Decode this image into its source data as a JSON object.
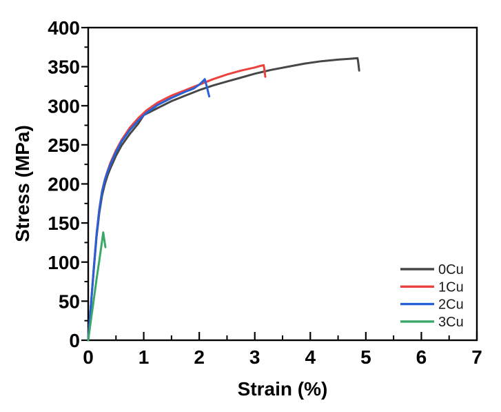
{
  "figure": {
    "background": "#ffffff",
    "plot_border_color": "#000000"
  },
  "axes": {
    "x": {
      "label": "Strain (%)",
      "min": 0,
      "max": 7,
      "major_step": 1,
      "minor_step": 0.5,
      "tick_labels": [
        "0",
        "1",
        "2",
        "3",
        "4",
        "5",
        "6",
        "7"
      ]
    },
    "y": {
      "label": "Stress (MPa)",
      "min": 0,
      "max": 400,
      "major_step": 50,
      "minor_step": 25,
      "tick_labels": [
        "0",
        "50",
        "100",
        "150",
        "200",
        "250",
        "300",
        "350",
        "400"
      ]
    }
  },
  "legend": {
    "position": "lower-right"
  },
  "chart_data": {
    "type": "line",
    "title": "",
    "xlabel": "Strain (%)",
    "ylabel": "Stress (MPa)",
    "xlim": [
      0,
      7
    ],
    "ylim": [
      0,
      400
    ],
    "grid": false,
    "legend_position": "lower right",
    "series": [
      {
        "name": "0Cu",
        "color": "#474747",
        "points": [
          [
            0,
            0
          ],
          [
            0.05,
            45
          ],
          [
            0.1,
            90
          ],
          [
            0.15,
            132
          ],
          [
            0.2,
            163
          ],
          [
            0.25,
            185
          ],
          [
            0.3,
            200
          ],
          [
            0.35,
            211
          ],
          [
            0.4,
            220
          ],
          [
            0.5,
            236
          ],
          [
            0.6,
            249
          ],
          [
            0.75,
            264
          ],
          [
            0.9,
            277
          ],
          [
            1.0,
            288
          ],
          [
            1.25,
            297
          ],
          [
            1.5,
            306
          ],
          [
            1.75,
            313
          ],
          [
            2.0,
            320
          ],
          [
            2.25,
            326
          ],
          [
            2.5,
            331
          ],
          [
            2.75,
            336
          ],
          [
            3.0,
            341
          ],
          [
            3.3,
            346
          ],
          [
            3.6,
            350
          ],
          [
            3.9,
            354
          ],
          [
            4.2,
            357
          ],
          [
            4.5,
            359
          ],
          [
            4.7,
            360
          ],
          [
            4.85,
            361
          ],
          [
            4.86,
            357
          ],
          [
            4.88,
            345
          ]
        ]
      },
      {
        "name": "1Cu",
        "color": "#ea423e",
        "points": [
          [
            0,
            0
          ],
          [
            0.05,
            46
          ],
          [
            0.1,
            93
          ],
          [
            0.15,
            136
          ],
          [
            0.2,
            168
          ],
          [
            0.25,
            191
          ],
          [
            0.3,
            206
          ],
          [
            0.35,
            217
          ],
          [
            0.4,
            227
          ],
          [
            0.5,
            243
          ],
          [
            0.6,
            256
          ],
          [
            0.75,
            272
          ],
          [
            0.9,
            284
          ],
          [
            1.05,
            294
          ],
          [
            1.25,
            304
          ],
          [
            1.5,
            313
          ],
          [
            1.75,
            320
          ],
          [
            2.0,
            327
          ],
          [
            2.25,
            334
          ],
          [
            2.5,
            340
          ],
          [
            2.75,
            345
          ],
          [
            3.0,
            349
          ],
          [
            3.1,
            351
          ],
          [
            3.16,
            352
          ],
          [
            3.17,
            348
          ],
          [
            3.19,
            337
          ]
        ]
      },
      {
        "name": "2Cu",
        "color": "#2661d8",
        "points": [
          [
            0,
            0
          ],
          [
            0.05,
            46
          ],
          [
            0.1,
            92
          ],
          [
            0.15,
            135
          ],
          [
            0.2,
            167
          ],
          [
            0.25,
            190
          ],
          [
            0.3,
            205
          ],
          [
            0.35,
            216
          ],
          [
            0.4,
            225
          ],
          [
            0.5,
            241
          ],
          [
            0.6,
            254
          ],
          [
            0.75,
            269
          ],
          [
            0.9,
            281
          ],
          [
            1.05,
            291
          ],
          [
            1.25,
            301
          ],
          [
            1.5,
            310
          ],
          [
            1.75,
            318
          ],
          [
            1.9,
            322
          ],
          [
            2.0,
            327
          ],
          [
            2.06,
            331
          ],
          [
            2.1,
            334
          ],
          [
            2.13,
            326
          ],
          [
            2.18,
            312
          ]
        ]
      },
      {
        "name": "3Cu",
        "color": "#3ba768",
        "points": [
          [
            0,
            0
          ],
          [
            0.05,
            26
          ],
          [
            0.1,
            52
          ],
          [
            0.15,
            78
          ],
          [
            0.2,
            102
          ],
          [
            0.23,
            117
          ],
          [
            0.25,
            127
          ],
          [
            0.27,
            138
          ],
          [
            0.29,
            128
          ],
          [
            0.31,
            119
          ]
        ]
      }
    ]
  }
}
